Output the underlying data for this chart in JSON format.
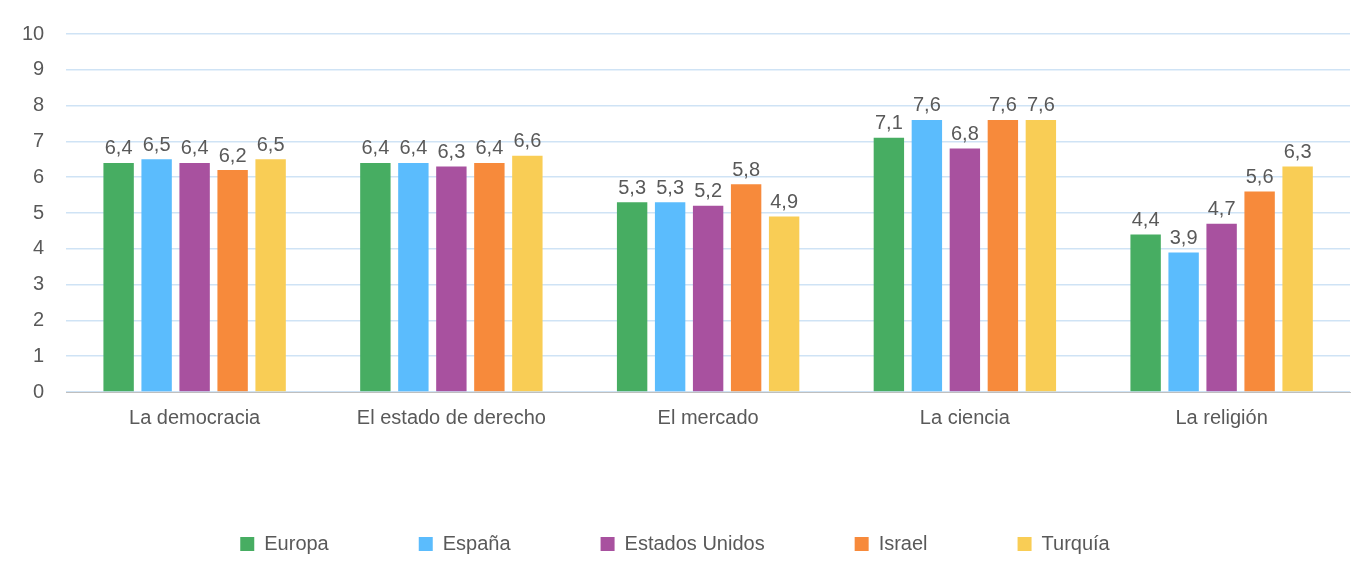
{
  "chart_data": {
    "type": "bar",
    "categories": [
      "La democracia",
      "El estado de derecho",
      "El mercado",
      "La ciencia",
      "La religión"
    ],
    "series": [
      {
        "name": "Europa",
        "color": "#47ad62",
        "values": [
          6.4,
          6.4,
          5.3,
          7.1,
          4.4
        ],
        "value_labels": [
          "6,4",
          "6,4",
          "5,3",
          "7,1",
          "4,4"
        ]
      },
      {
        "name": "España",
        "color": "#5bbcfd",
        "values": [
          6.5,
          6.4,
          5.3,
          7.6,
          3.9
        ],
        "value_labels": [
          "6,5",
          "6,4",
          "5,3",
          "7,6",
          "3,9"
        ]
      },
      {
        "name": "Estados Unidos",
        "color": "#a8519f",
        "values": [
          6.4,
          6.3,
          5.2,
          6.8,
          4.7
        ],
        "value_labels": [
          "6,4",
          "6,3",
          "5,2",
          "6,8",
          "4,7"
        ]
      },
      {
        "name": "Israel",
        "color": "#f78a3b",
        "values": [
          6.2,
          6.4,
          5.8,
          7.6,
          5.6
        ],
        "value_labels": [
          "6,2",
          "6,4",
          "5,8",
          "7,6",
          "5,6"
        ]
      },
      {
        "name": "Turquía",
        "color": "#f9cd55",
        "values": [
          6.5,
          6.6,
          4.9,
          7.6,
          6.3
        ],
        "value_labels": [
          "6,5",
          "6,6",
          "4,9",
          "7,6",
          "6,3"
        ]
      }
    ],
    "ylim": [
      0,
      10
    ],
    "yticks": [
      0,
      1,
      2,
      3,
      4,
      5,
      6,
      7,
      8,
      9,
      10
    ],
    "grid": "y",
    "legend": "bottom"
  }
}
